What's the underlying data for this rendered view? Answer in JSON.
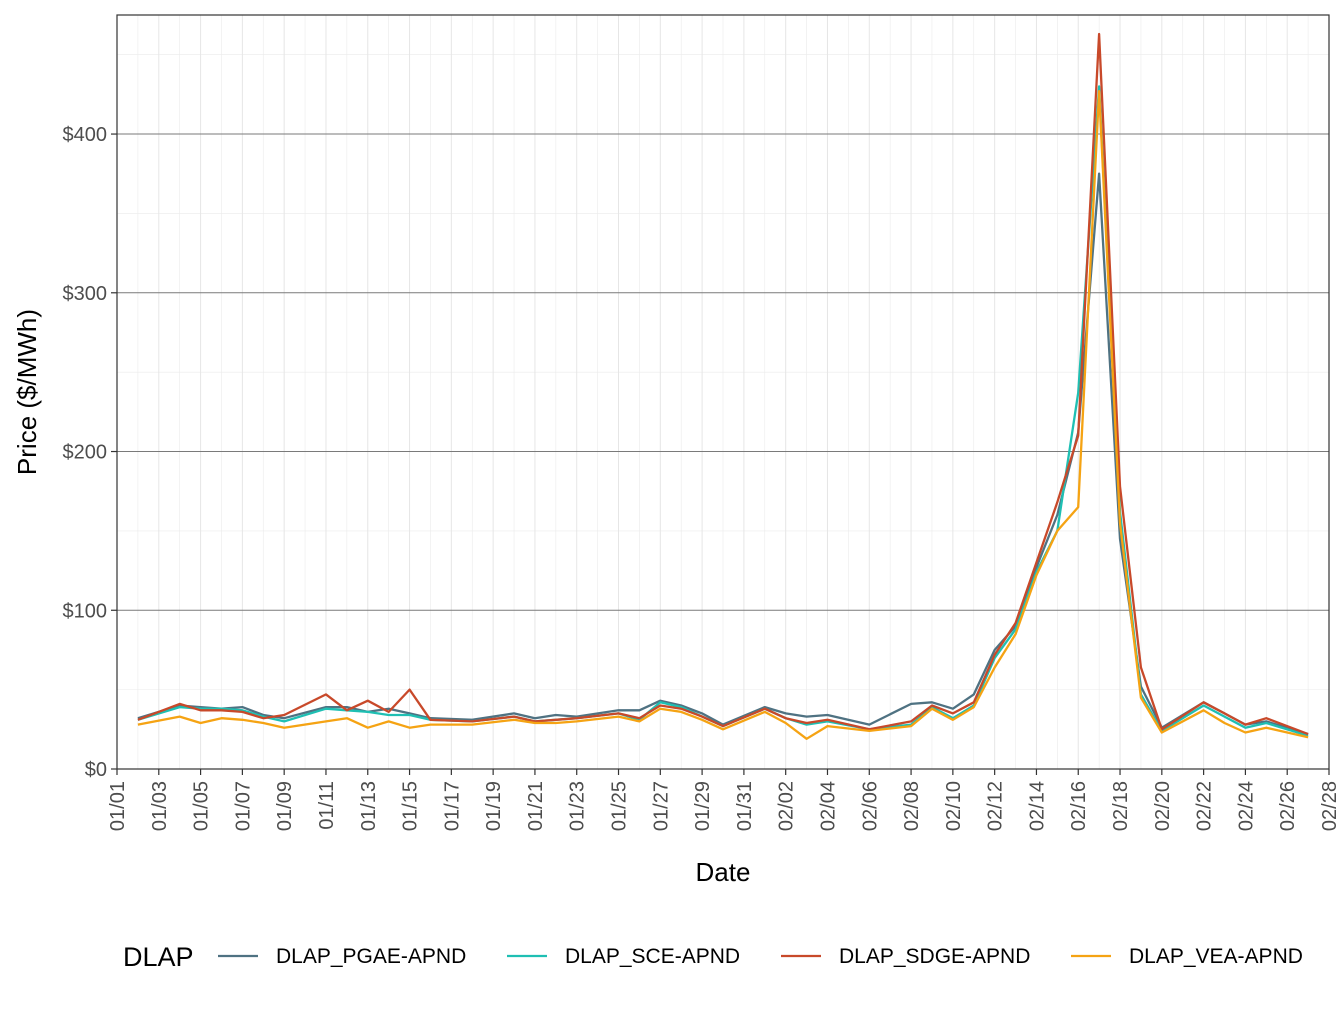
{
  "chart_data": {
    "type": "line",
    "xlabel": "Date",
    "ylabel": "Price ($/MWh)",
    "legend_title": "DLAP",
    "legend_position": "bottom",
    "grid": true,
    "xlim": [
      "01/01",
      "02/28"
    ],
    "ylim": [
      0,
      475
    ],
    "x_tick_labels": [
      "01/01",
      "01/03",
      "01/05",
      "01/07",
      "01/09",
      "01/11",
      "01/13",
      "01/15",
      "01/17",
      "01/19",
      "01/21",
      "01/23",
      "01/25",
      "01/27",
      "01/29",
      "01/31",
      "02/02",
      "02/04",
      "02/06",
      "02/08",
      "02/10",
      "02/12",
      "02/14",
      "02/16",
      "02/18",
      "02/20",
      "02/22",
      "02/24",
      "02/26",
      "02/28"
    ],
    "y_ticks": [
      0,
      100,
      200,
      300,
      400
    ],
    "y_tick_labels": [
      "$0",
      "$100",
      "$200",
      "$300",
      "$400"
    ],
    "x": [
      "01/02",
      "01/04",
      "01/05",
      "01/06",
      "01/07",
      "01/08",
      "01/09",
      "01/11",
      "01/12",
      "01/13",
      "01/14",
      "01/15",
      "01/16",
      "01/18",
      "01/20",
      "01/21",
      "01/22",
      "01/23",
      "01/25",
      "01/26",
      "01/27",
      "01/28",
      "01/29",
      "01/30",
      "02/01",
      "02/02",
      "02/03",
      "02/04",
      "02/06",
      "02/08",
      "02/09",
      "02/10",
      "02/11",
      "02/12",
      "02/13",
      "02/14",
      "02/15",
      "02/16",
      "02/17",
      "02/18",
      "02/19",
      "02/20",
      "02/22",
      "02/23",
      "02/24",
      "02/25",
      "02/27"
    ],
    "series": [
      {
        "name": "DLAP_PGAE-APND",
        "color": "#4f7282",
        "values": [
          32,
          40,
          39,
          38,
          39,
          34,
          32,
          39,
          39,
          36,
          38,
          35,
          32,
          31,
          35,
          32,
          34,
          33,
          37,
          37,
          43,
          40,
          35,
          28,
          39,
          35,
          33,
          34,
          28,
          41,
          42,
          38,
          47,
          75,
          90,
          127,
          160,
          212,
          375,
          145,
          52,
          26,
          42,
          35,
          28,
          30,
          22
        ]
      },
      {
        "name": "DLAP_SCE-APND",
        "color": "#1fbfb3",
        "values": [
          31,
          39,
          38,
          38,
          37,
          33,
          30,
          38,
          37,
          36,
          34,
          34,
          31,
          30,
          33,
          30,
          31,
          32,
          35,
          31,
          42,
          39,
          33,
          27,
          38,
          32,
          28,
          30,
          25,
          28,
          39,
          32,
          40,
          70,
          88,
          124,
          150,
          237,
          430,
          162,
          47,
          24,
          40,
          33,
          26,
          29,
          21
        ]
      },
      {
        "name": "DLAP_SDGE-APND",
        "color": "#c8492a",
        "values": [
          31,
          41,
          37,
          37,
          36,
          32,
          34,
          47,
          37,
          43,
          36,
          50,
          31,
          30,
          33,
          30,
          31,
          32,
          35,
          32,
          40,
          38,
          33,
          27,
          38,
          32,
          29,
          31,
          25,
          30,
          40,
          35,
          42,
          72,
          92,
          130,
          168,
          210,
          463,
          178,
          64,
          25,
          42,
          35,
          28,
          32,
          22
        ]
      },
      {
        "name": "DLAP_VEA-APND",
        "color": "#f5a313",
        "values": [
          28,
          33,
          29,
          32,
          31,
          29,
          26,
          30,
          32,
          26,
          30,
          26,
          28,
          28,
          31,
          29,
          29,
          30,
          33,
          30,
          38,
          36,
          31,
          25,
          36,
          29,
          19,
          27,
          24,
          27,
          38,
          31,
          39,
          64,
          85,
          122,
          150,
          165,
          427,
          155,
          45,
          23,
          37,
          29,
          23,
          26,
          20
        ]
      }
    ]
  }
}
